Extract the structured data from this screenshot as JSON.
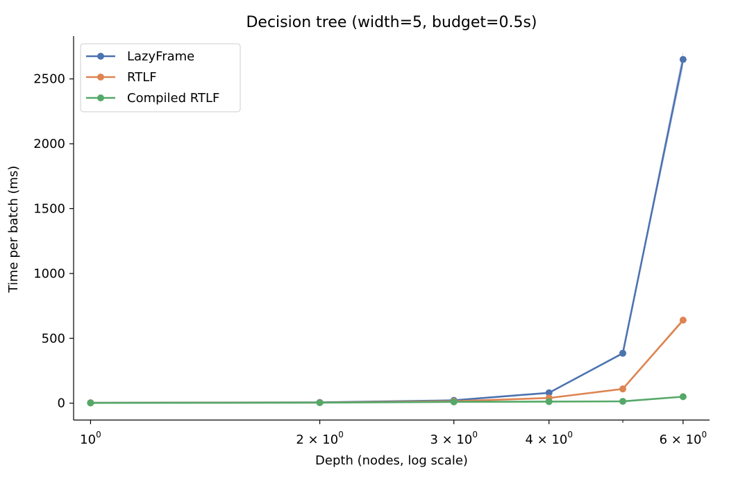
{
  "chart_data": {
    "type": "line",
    "title": "Decision tree (width=5, budget=0.5s)",
    "xlabel": "Depth (nodes, log scale)",
    "ylabel": "Time per batch (ms)",
    "xscale": "log",
    "xlim": [
      0.95,
      6.5
    ],
    "ylim": [
      -130,
      2830
    ],
    "grid": false,
    "legend_position": "top-left",
    "x": [
      1,
      2,
      3,
      4,
      5,
      6
    ],
    "xticks": [
      {
        "value": 1,
        "base": "10",
        "exp": "0"
      },
      {
        "value": 2,
        "base": "2 × 10",
        "exp": "0"
      },
      {
        "value": 3,
        "base": "3 × 10",
        "exp": "0"
      },
      {
        "value": 4,
        "base": "4 × 10",
        "exp": "0"
      },
      {
        "value": 6,
        "base": "6 × 10",
        "exp": "0"
      }
    ],
    "minor_xticks": [
      5
    ],
    "yticks": [
      0,
      500,
      1000,
      1500,
      2000,
      2500
    ],
    "series": [
      {
        "name": "LazyFrame",
        "color": "#4c72b0",
        "values": [
          3,
          6,
          22,
          80,
          385,
          2650
        ]
      },
      {
        "name": "RTLF",
        "color": "#dd8452",
        "values": [
          3,
          5,
          15,
          40,
          110,
          640
        ]
      },
      {
        "name": "Compiled RTLF",
        "color": "#55a868",
        "values": [
          2,
          4,
          10,
          12,
          14,
          50
        ]
      }
    ]
  }
}
